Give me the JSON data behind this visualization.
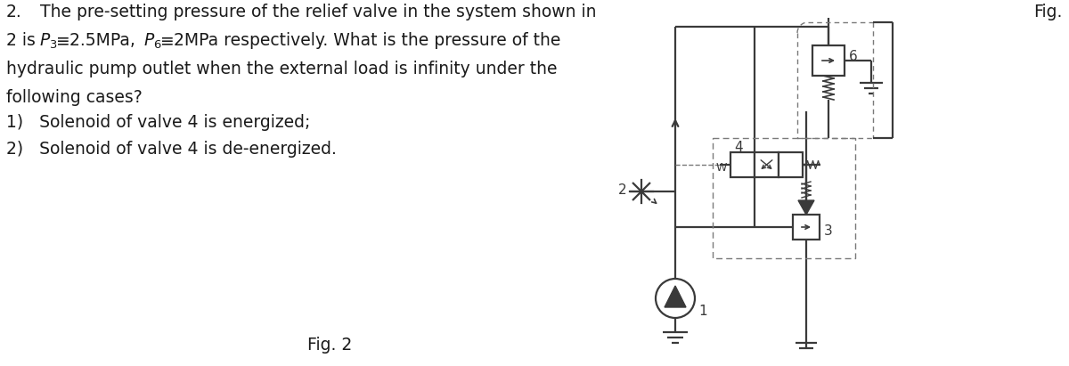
{
  "bg_color": "#ffffff",
  "text_color": "#1a1a1a",
  "fig_width": 12.0,
  "fig_height": 4.11,
  "dpi": 100,
  "diagram_color": "#3a3a3a",
  "dashed_color": "#7a7a7a",
  "line1_num": "2.",
  "line1_text": "The pre-setting pressure of the relief valve in the system shown in",
  "line2a": "2 is ",
  "line2b": "=2.5MPa,  ",
  "line2c": "=2MPa respectively. What is the pressure of the",
  "line3": "hydraulic pump outlet when the external load is infinity under the",
  "line4": "following cases?",
  "line5": "1)   Solenoid of valve 4 is energized;",
  "line6": "2)   Solenoid of valve 4 is de-energized.",
  "fig_label": "Fig. 2",
  "fig_right": "Fig."
}
